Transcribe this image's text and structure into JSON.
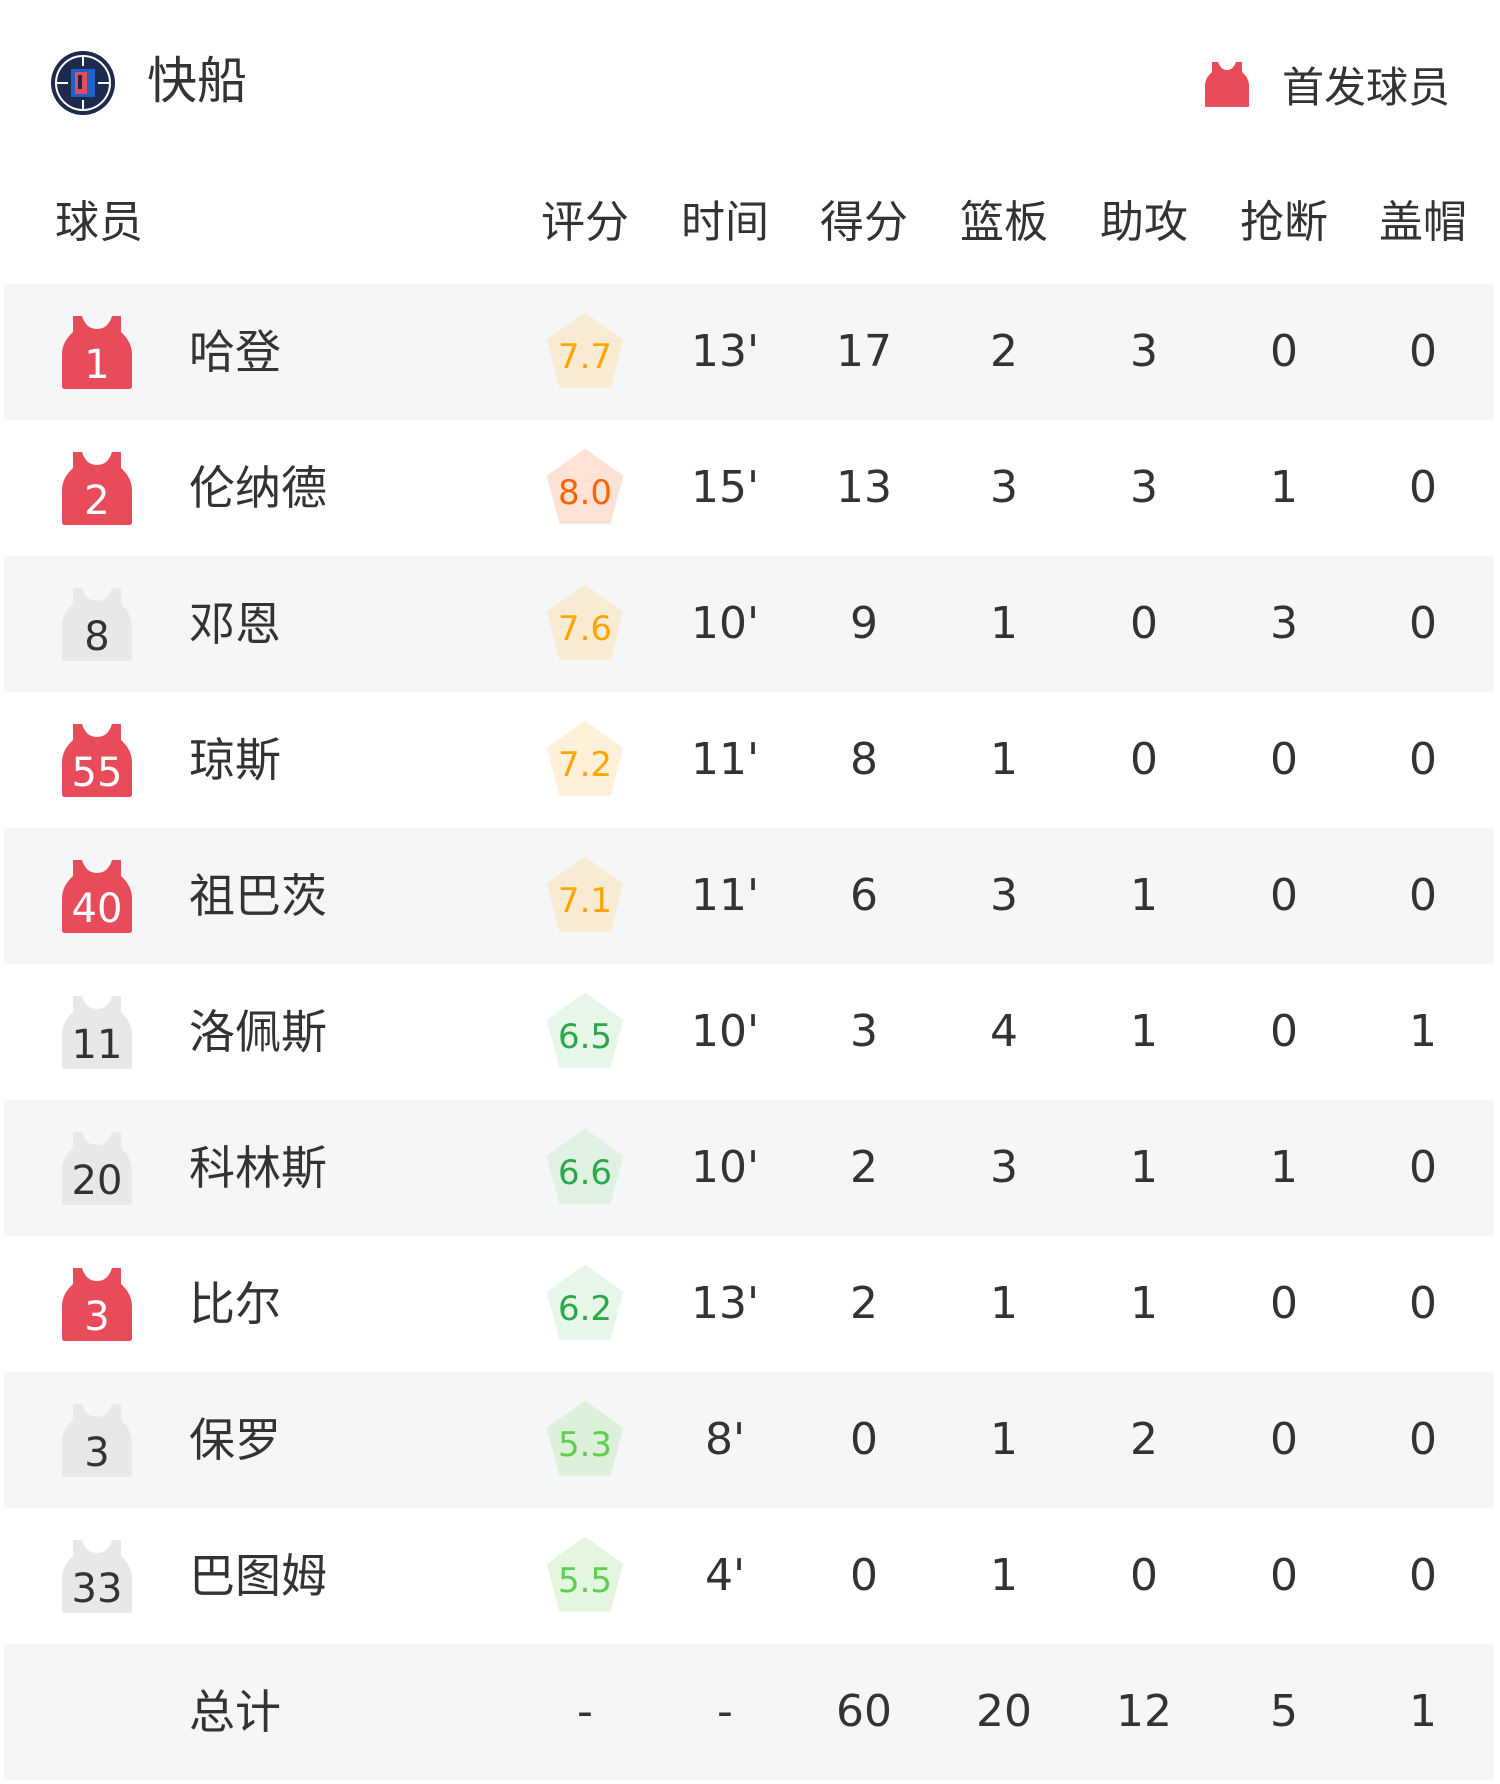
{
  "header": {
    "team_name": "快船",
    "logo": "clippers-logo",
    "legend_label": "首发球员",
    "legend_icon": "jersey-icon"
  },
  "colors": {
    "starter": "#e84c5a",
    "bench": "#e8e8e8",
    "row_alt": "#f5f6f8"
  },
  "columns": [
    "球员",
    "评分",
    "时间",
    "得分",
    "篮板",
    "助攻",
    "抢断",
    "盖帽"
  ],
  "players": [
    {
      "number": "1",
      "name": "哈登",
      "starter": true,
      "rating": "7.7",
      "time": "13'",
      "pts": "17",
      "reb": "2",
      "ast": "3",
      "stl": "0",
      "blk": "0",
      "rating_color": "#ffa500",
      "rating_bg": "#f7ebd3"
    },
    {
      "number": "2",
      "name": "伦纳德",
      "starter": true,
      "rating": "8.0",
      "time": "15'",
      "pts": "13",
      "reb": "3",
      "ast": "3",
      "stl": "1",
      "blk": "0",
      "rating_color": "#ff6400",
      "rating_bg": "#ffe2d6"
    },
    {
      "number": "8",
      "name": "邓恩",
      "starter": false,
      "rating": "7.6",
      "time": "10'",
      "pts": "9",
      "reb": "1",
      "ast": "0",
      "stl": "3",
      "blk": "0",
      "rating_color": "#ffa500",
      "rating_bg": "#f7ebd3"
    },
    {
      "number": "55",
      "name": "琼斯",
      "starter": true,
      "rating": "7.2",
      "time": "11'",
      "pts": "8",
      "reb": "1",
      "ast": "0",
      "stl": "0",
      "blk": "0",
      "rating_color": "#ffa500",
      "rating_bg": "#fff0d9"
    },
    {
      "number": "40",
      "name": "祖巴茨",
      "starter": true,
      "rating": "7.1",
      "time": "11'",
      "pts": "6",
      "reb": "3",
      "ast": "1",
      "stl": "0",
      "blk": "0",
      "rating_color": "#ffa500",
      "rating_bg": "#f7ebd3"
    },
    {
      "number": "11",
      "name": "洛佩斯",
      "starter": false,
      "rating": "6.5",
      "time": "10'",
      "pts": "3",
      "reb": "4",
      "ast": "1",
      "stl": "0",
      "blk": "1",
      "rating_color": "#2aa84a",
      "rating_bg": "#e6f6e8"
    },
    {
      "number": "20",
      "name": "科林斯",
      "starter": false,
      "rating": "6.6",
      "time": "10'",
      "pts": "2",
      "reb": "3",
      "ast": "1",
      "stl": "1",
      "blk": "0",
      "rating_color": "#2aa84a",
      "rating_bg": "#e0f0e3"
    },
    {
      "number": "3",
      "name": "比尔",
      "starter": true,
      "rating": "6.2",
      "time": "13'",
      "pts": "2",
      "reb": "1",
      "ast": "1",
      "stl": "0",
      "blk": "0",
      "rating_color": "#2aa84a",
      "rating_bg": "#e6f6e8"
    },
    {
      "number": "3",
      "name": "保罗",
      "starter": false,
      "rating": "5.3",
      "time": "8'",
      "pts": "0",
      "reb": "1",
      "ast": "2",
      "stl": "0",
      "blk": "0",
      "rating_color": "#5ccf4c",
      "rating_bg": "#ddf0dc"
    },
    {
      "number": "33",
      "name": "巴图姆",
      "starter": false,
      "rating": "5.5",
      "time": "4'",
      "pts": "0",
      "reb": "1",
      "ast": "0",
      "stl": "0",
      "blk": "0",
      "rating_color": "#5ccf4c",
      "rating_bg": "#e4f5e0"
    }
  ],
  "totals": {
    "label": "总计",
    "rating": "-",
    "time": "-",
    "pts": "60",
    "reb": "20",
    "ast": "12",
    "stl": "5",
    "blk": "1"
  }
}
